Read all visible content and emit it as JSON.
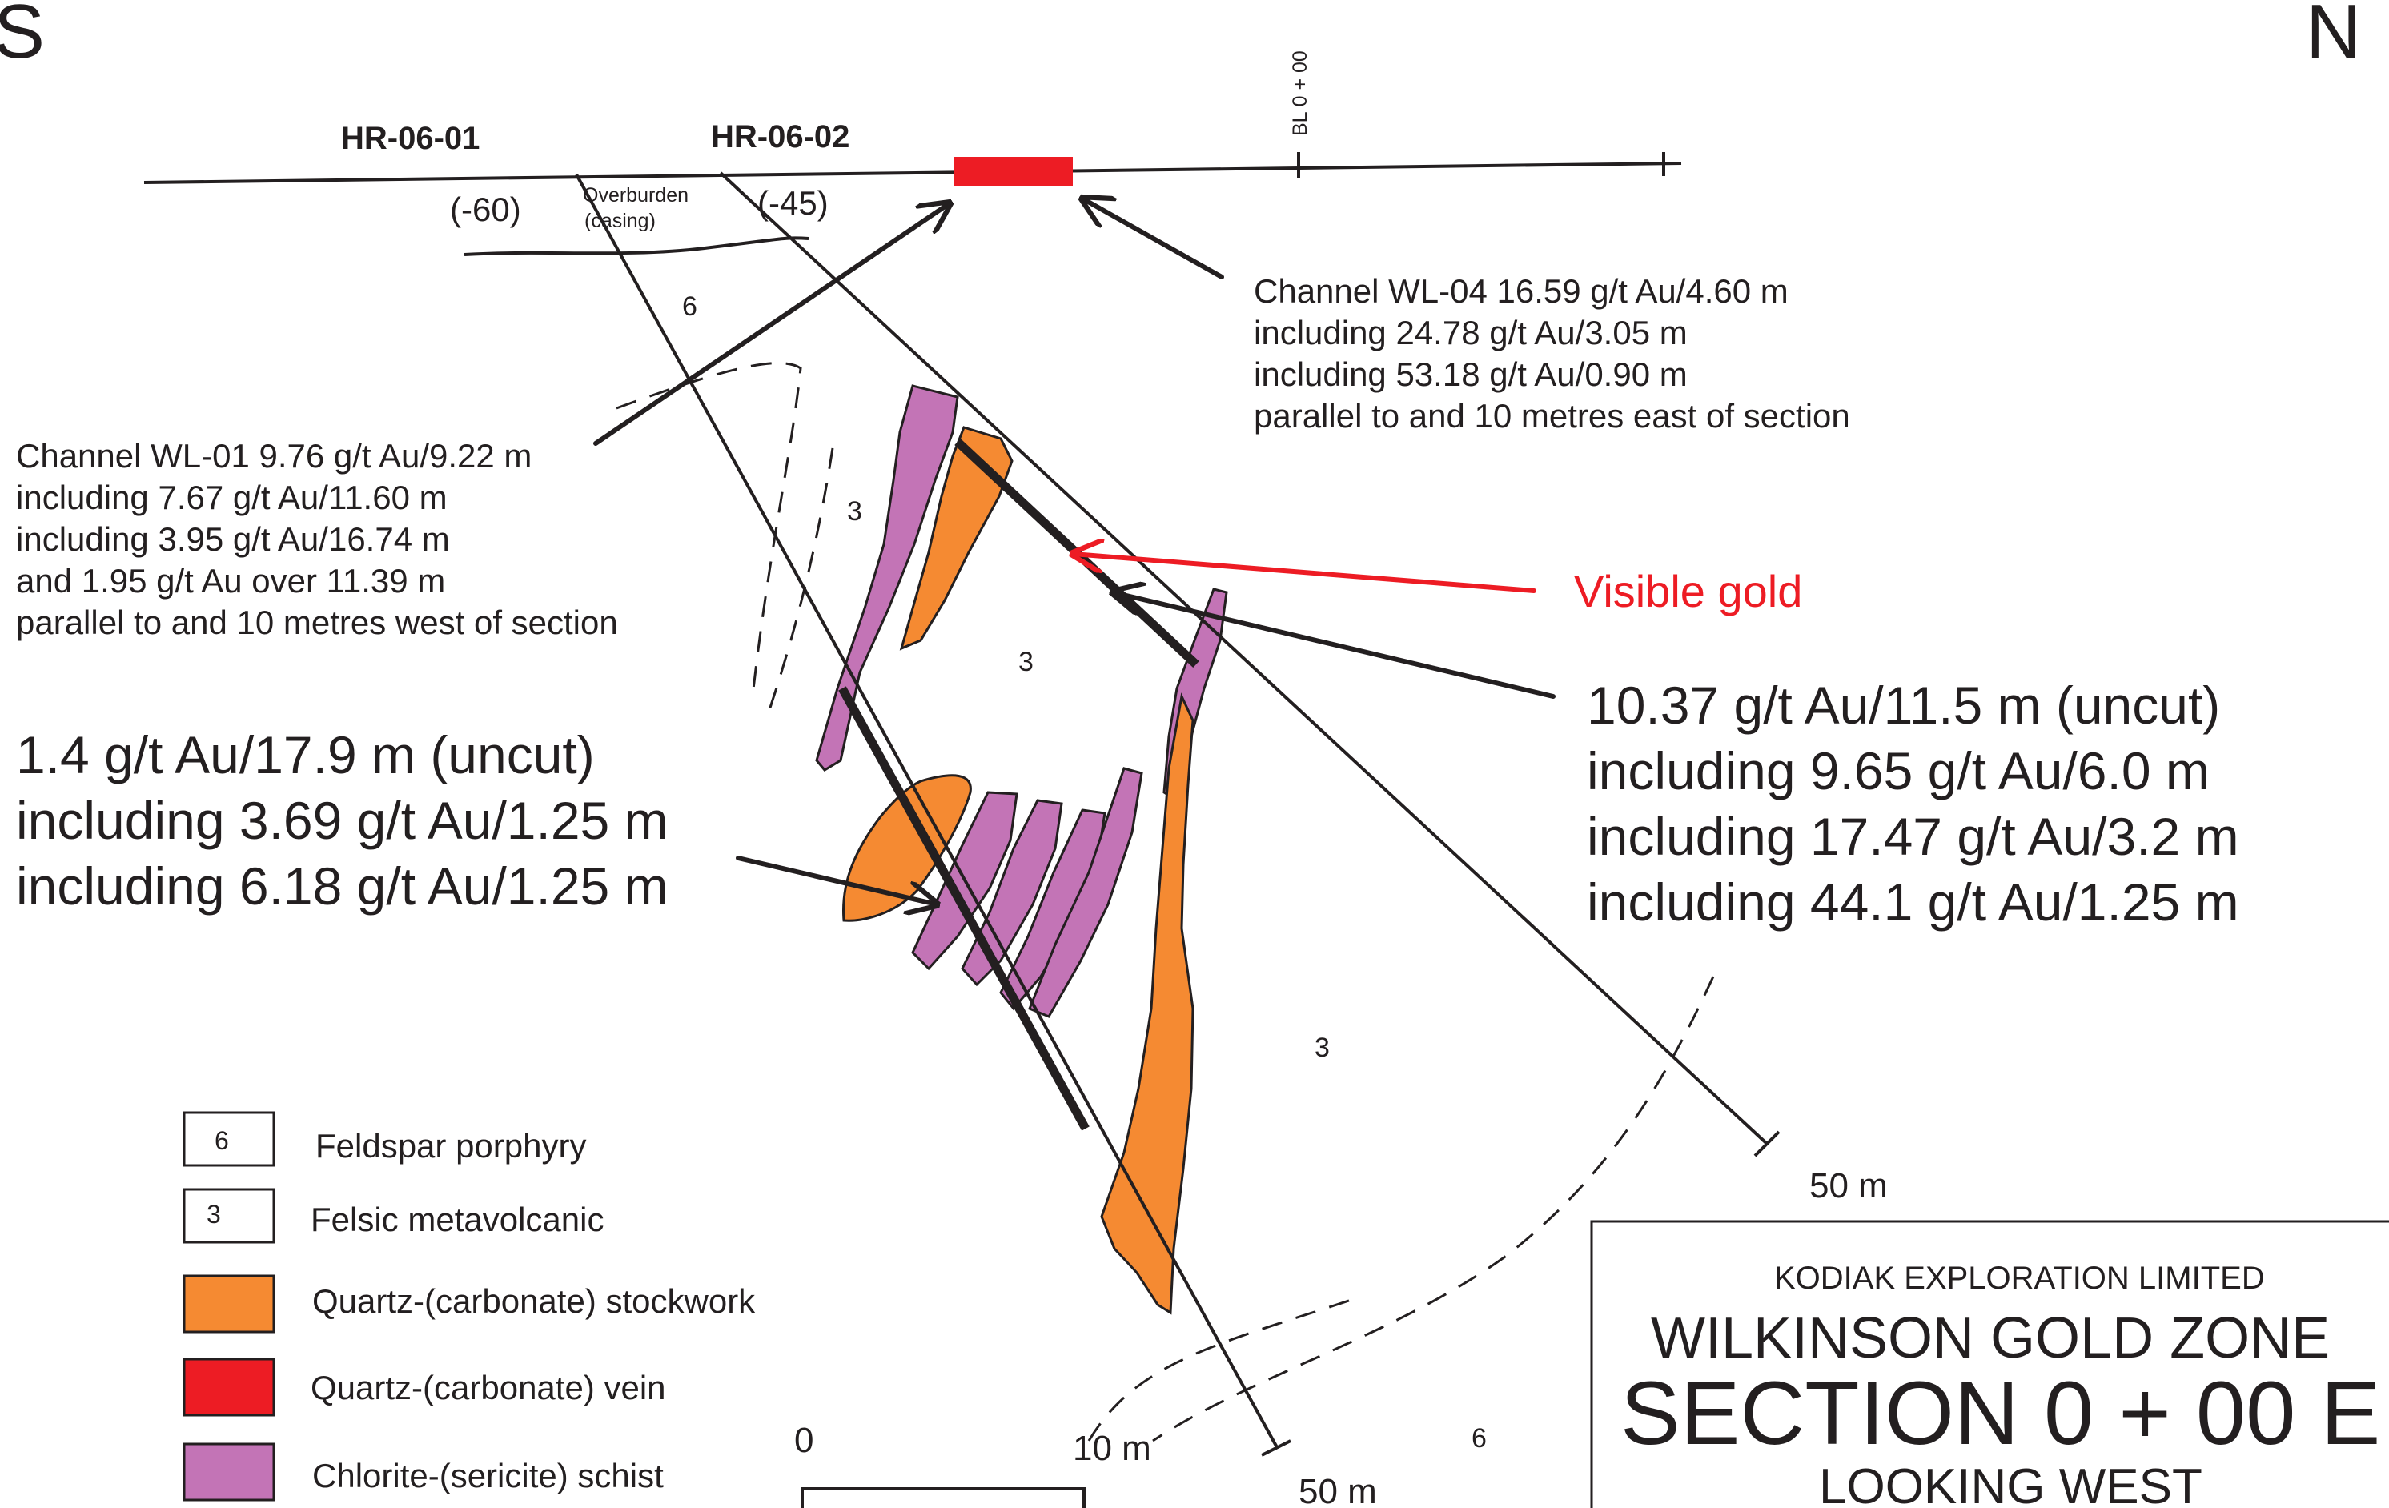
{
  "compass": {
    "south": "S",
    "north": "N"
  },
  "drillholes": [
    {
      "id": "HR-06-01",
      "dip": "(-60)"
    },
    {
      "id": "HR-06-02",
      "dip": "(-45)"
    }
  ],
  "baseline_label": "BL 0 + 00",
  "overburden": {
    "line1": "Overburden",
    "line2": "(casing)"
  },
  "unit_labels": [
    "6",
    "3",
    "3",
    "3",
    "6"
  ],
  "annotations": {
    "wl04": [
      "Channel WL-04 16.59 g/t Au/4.60 m",
      "including 24.78 g/t Au/3.05 m",
      "including 53.18 g/t Au/0.90 m",
      "parallel to and 10 metres east of section"
    ],
    "wl01": [
      "Channel WL-01 9.76 g/t Au/9.22 m",
      "including 7.67 g/t Au/11.60 m",
      "including 3.95 g/t Au/16.74 m",
      "and 1.95 g/t Au over 11.39 m",
      "parallel to and 10 metres west of section"
    ],
    "hr0602": [
      "10.37 g/t Au/11.5 m (uncut)",
      "including 9.65 g/t Au/6.0 m",
      "including 17.47 g/t Au/3.2 m",
      "including 44.1 g/t Au/1.25 m"
    ],
    "hr0601": [
      "1.4 g/t Au/17.9 m (uncut)",
      "including 3.69 g/t Au/1.25 m",
      "including 6.18 g/t Au/1.25 m"
    ],
    "visible_gold": "Visible gold"
  },
  "hole_end_labels": [
    "50 m",
    "50 m"
  ],
  "scale": {
    "zero": "0",
    "ten": "10 m"
  },
  "legend": [
    {
      "code": "6",
      "label": "Feldspar porphyry",
      "color": "#ffffff"
    },
    {
      "code": "3",
      "label": "Felsic metavolcanic",
      "color": "#ffffff"
    },
    {
      "code": "",
      "label": "Quartz-(carbonate) stockwork",
      "color": "#f58a32"
    },
    {
      "code": "",
      "label": "Quartz-(carbonate) vein",
      "color": "#ed1c24"
    },
    {
      "code": "",
      "label": "Chlorite-(sericite) schist",
      "color": "#c374b6"
    }
  ],
  "title_block": {
    "company": "KODIAK EXPLORATION LIMITED",
    "zone": "WILKINSON GOLD ZONE",
    "section": "SECTION 0 + 00 E",
    "view": "LOOKING WEST"
  },
  "colors": {
    "stockwork": "#f58a32",
    "vein": "#ed1c24",
    "schist": "#c374b6",
    "visible_gold": "#ed1c24"
  }
}
